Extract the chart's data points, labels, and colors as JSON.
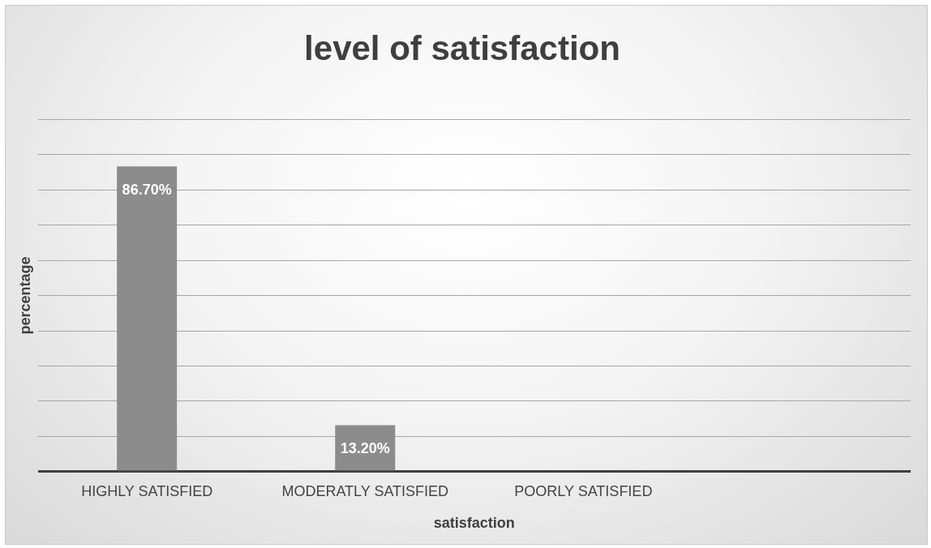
{
  "chart_data": {
    "type": "bar",
    "title": "level of satisfaction",
    "xlabel": "satisfaction",
    "ylabel": "percentage",
    "categories": [
      "HIGHLY SATISFIED",
      "MODERATLY SATISFIED",
      "POORLY SATISFIED",
      null
    ],
    "values": [
      86.7,
      13.2,
      null,
      null
    ],
    "value_labels": [
      "86.70%",
      "13.20%",
      null,
      null
    ],
    "color": "#8c8c8c",
    "relative": false,
    "ylim": [
      0,
      100
    ],
    "yticks": [
      {
        "value": 0,
        "label": null
      },
      {
        "value": 10,
        "label": null
      },
      {
        "value": 20,
        "label": null
      },
      {
        "value": 30,
        "label": null
      },
      {
        "value": 40,
        "label": null
      },
      {
        "value": 50,
        "label": null
      },
      {
        "value": 60,
        "label": null
      },
      {
        "value": 70,
        "label": null
      },
      {
        "value": 80,
        "label": null
      },
      {
        "value": 90,
        "label": null
      },
      {
        "value": 100,
        "label": null
      }
    ],
    "tick_labels": "x",
    "grid": "y",
    "legend": false
  }
}
